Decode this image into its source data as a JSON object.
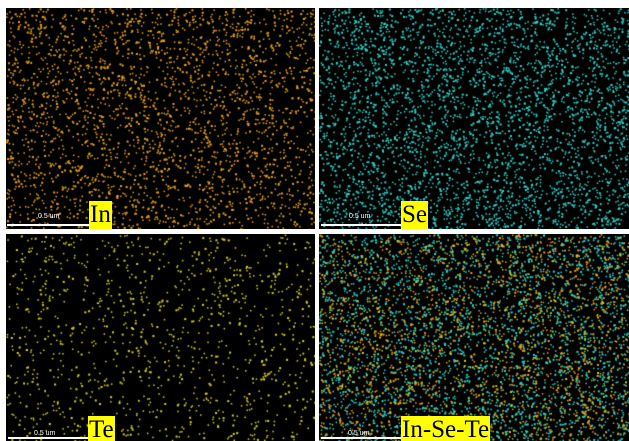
{
  "panels": [
    {
      "id": "in",
      "label": "In",
      "scale": "0.5 um",
      "colors": [
        "#e8a21c"
      ]
    },
    {
      "id": "se",
      "label": "Se",
      "scale": "0.5 um",
      "colors": [
        "#2fd3c9"
      ]
    },
    {
      "id": "te",
      "label": "Te",
      "scale": "0.5 um",
      "colors": [
        "#d7d21a"
      ]
    },
    {
      "id": "mix",
      "label": "In-Se-Te",
      "scale": "0.5 um",
      "colors": [
        "#2fd3c9",
        "#e8a21c",
        "#d7d21a"
      ]
    }
  ]
}
